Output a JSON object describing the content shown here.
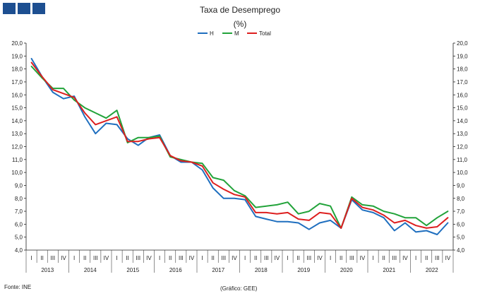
{
  "colors": {
    "H": "#1f6fbf",
    "M": "#22a33a",
    "Total": "#dd1f1f"
  },
  "footer": {
    "source": "Fonte: INE",
    "credit": "(Gráfico: GEE)"
  },
  "chart_data": {
    "type": "line",
    "title": "Taxa de Desemprego",
    "subtitle": "(%)",
    "ylim": [
      4.0,
      20.0
    ],
    "ystep": 1.0,
    "y_ticks": [
      "4,0",
      "5,0",
      "6,0",
      "7,0",
      "8,0",
      "9,0",
      "10,0",
      "11,0",
      "12,0",
      "13,0",
      "14,0",
      "15,0",
      "16,0",
      "17,0",
      "18,0",
      "19,0",
      "20,0"
    ],
    "dual_y_axis": true,
    "grid": false,
    "legend_position": "top-center",
    "quarters": [
      "I",
      "II",
      "III",
      "IV"
    ],
    "years": [
      "2013",
      "2014",
      "2015",
      "2016",
      "2017",
      "2018",
      "2019",
      "2020",
      "2021",
      "2022"
    ],
    "series": [
      {
        "name": "H",
        "color_key": "H",
        "values": [
          18.8,
          17.4,
          16.2,
          15.7,
          15.9,
          14.3,
          13.0,
          13.8,
          13.7,
          12.6,
          12.1,
          12.7,
          12.9,
          11.3,
          10.8,
          10.8,
          10.2,
          8.8,
          8.0,
          8.0,
          7.9,
          6.6,
          6.4,
          6.2,
          6.2,
          6.1,
          5.6,
          6.1,
          6.3,
          5.7,
          7.9,
          7.1,
          6.9,
          6.5,
          5.5,
          6.1,
          5.4,
          5.5,
          5.2,
          6.1
        ]
      },
      {
        "name": "M",
        "color_key": "M",
        "values": [
          18.2,
          17.3,
          16.5,
          16.5,
          15.6,
          15.0,
          14.6,
          14.2,
          14.8,
          12.3,
          12.7,
          12.7,
          12.8,
          11.2,
          11.0,
          10.8,
          10.7,
          9.6,
          9.4,
          8.6,
          8.2,
          7.3,
          7.4,
          7.5,
          7.7,
          6.8,
          7.0,
          7.6,
          7.4,
          5.7,
          8.1,
          7.5,
          7.4,
          7.0,
          6.8,
          6.5,
          6.5,
          5.9,
          6.5,
          7.0
        ]
      },
      {
        "name": "Total",
        "color_key": "Total",
        "values": [
          18.5,
          17.4,
          16.4,
          16.1,
          15.8,
          14.6,
          13.7,
          14.0,
          14.3,
          12.4,
          12.4,
          12.6,
          12.7,
          11.3,
          10.9,
          10.8,
          10.5,
          9.2,
          8.7,
          8.3,
          8.1,
          6.9,
          6.9,
          6.8,
          6.9,
          6.4,
          6.3,
          6.9,
          6.8,
          5.7,
          8.0,
          7.3,
          7.1,
          6.7,
          6.1,
          6.3,
          5.9,
          5.7,
          5.8,
          6.5
        ]
      }
    ]
  }
}
